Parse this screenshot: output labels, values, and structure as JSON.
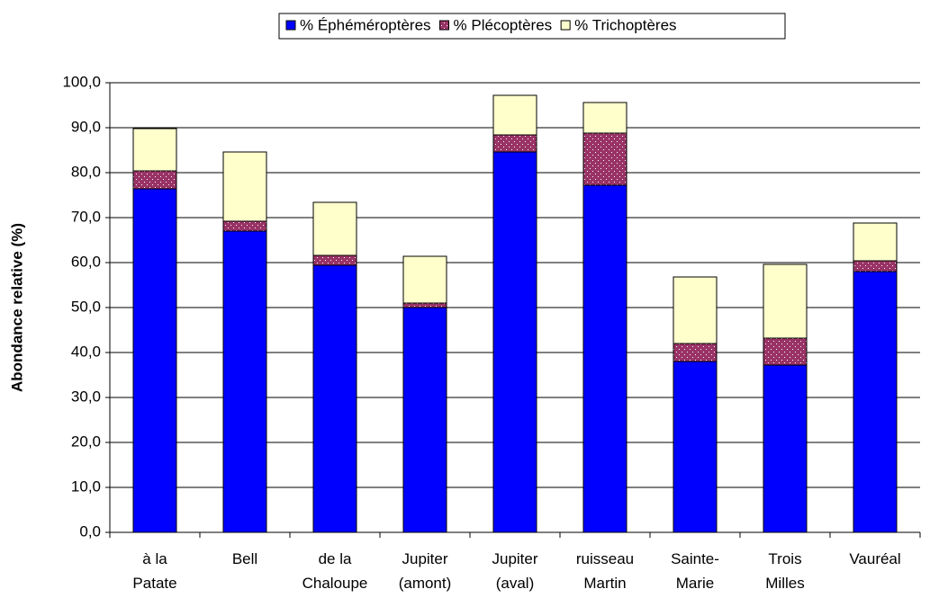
{
  "chart_data": {
    "type": "stacked_bar",
    "y_label": "Abondance relative (%)",
    "categories": [
      "à la\nPatate",
      "Bell",
      "de la\nChaloupe",
      "Jupiter\n(amont)",
      "Jupiter\n(aval)",
      "ruisseau\nMartin",
      "Sainte-\nMarie",
      "Trois\nMilles",
      "Vauréal"
    ],
    "series": [
      {
        "name": "% Éphéméroptères",
        "color": "#0000ff",
        "values": [
          76.4,
          67.0,
          59.4,
          50.0,
          84.6,
          77.2,
          38.0,
          37.2,
          58.0
        ]
      },
      {
        "name": "% Plécoptères",
        "color": "#993366",
        "values": [
          4.0,
          2.2,
          2.2,
          1.0,
          3.8,
          11.6,
          4.0,
          6.0,
          2.4
        ]
      },
      {
        "name": "% Trichoptères",
        "color": "#ffffcc",
        "values": [
          9.4,
          15.4,
          11.8,
          10.4,
          8.8,
          6.8,
          14.8,
          16.4,
          8.4
        ]
      }
    ],
    "ylim": [
      0,
      100
    ],
    "yticks": [
      {
        "value": 0,
        "label": "0,0"
      },
      {
        "value": 10,
        "label": "10,0"
      },
      {
        "value": 20,
        "label": "20,0"
      },
      {
        "value": 30,
        "label": "30,0"
      },
      {
        "value": 40,
        "label": "40,0"
      },
      {
        "value": 50,
        "label": "50,0"
      },
      {
        "value": 60,
        "label": "60,0"
      },
      {
        "value": 70,
        "label": "70,0"
      },
      {
        "value": 80,
        "label": "80,0"
      },
      {
        "value": 90,
        "label": "90,0"
      },
      {
        "value": 100,
        "label": "100,0"
      }
    ],
    "grid": true,
    "legend": "top"
  }
}
